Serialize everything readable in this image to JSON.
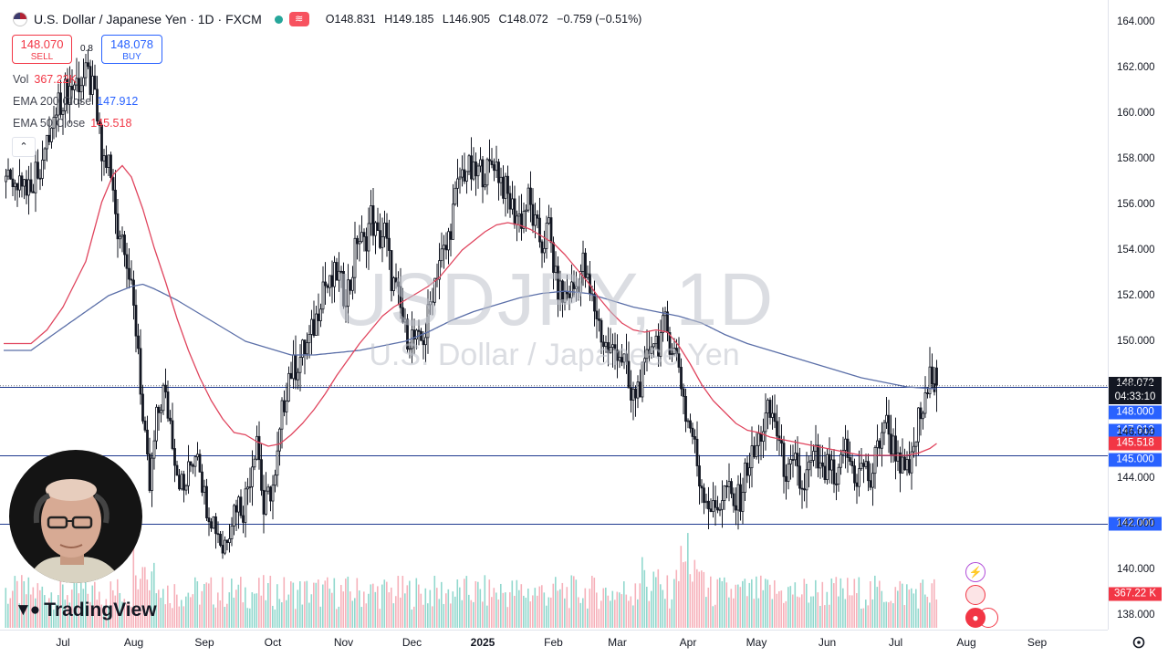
{
  "header": {
    "title": "U.S. Dollar / Japanese Yen · 1D · FXCM",
    "ohlc": {
      "o_label": "O",
      "o": "148.831",
      "h_label": "H",
      "h": "149.185",
      "l_label": "L",
      "l": "146.905",
      "c_label": "C",
      "c": "148.072",
      "change": "−0.759 (−0.51%)"
    }
  },
  "trade": {
    "sell_price": "148.070",
    "sell_label": "SELL",
    "spread": "0.8",
    "buy_price": "148.078",
    "buy_label": "BUY"
  },
  "indicators": [
    {
      "label": "Vol",
      "value": "367.22K",
      "color": "#f23645"
    },
    {
      "label": "EMA 200 Close",
      "value": "147.912",
      "color": "#2962ff"
    },
    {
      "label": "EMA 50 Close",
      "value": "145.518",
      "color": "#f23645"
    }
  ],
  "watermark": {
    "symbol": "USDJPY, 1D",
    "name": "U.S. Dollar / Japanese Yen"
  },
  "logo_text": "TradingView",
  "price_tags": {
    "last_price": "148.072",
    "countdown": "04:33:10",
    "level_148": "148.000",
    "ema200": "147.912",
    "ema50": "145.518",
    "level_145": "145.000",
    "level_142": "142.000",
    "volume": "367.22 K"
  },
  "colors": {
    "up": "#131722",
    "down": "#131722",
    "ema200": "#5b6fa8",
    "ema50": "#e0455e",
    "hline": "#1f3a8f",
    "tag_blue": "#2962ff",
    "tag_red": "#f23645",
    "tag_dark": "#131722",
    "vol_up": "#7fd1c5",
    "vol_down": "#f5a3ae"
  },
  "chart_data": {
    "type": "candlestick",
    "title": "U.S. Dollar / Japanese Yen · 1D · FXCM",
    "ylim": [
      137.2,
      164.8
    ],
    "yticks": [
      138,
      140,
      142,
      144,
      146,
      148,
      150,
      152,
      154,
      156,
      158,
      160,
      162,
      164
    ],
    "ytick_labels": [
      "138.000",
      "140.000",
      "142.000",
      "144.000",
      "146.000",
      "148.000",
      "150.000",
      "152.000",
      "154.000",
      "156.000",
      "158.000",
      "160.000",
      "162.000",
      "164.000"
    ],
    "xticks": [
      {
        "label": "Jul",
        "day": 0
      },
      {
        "label": "Aug",
        "day": 31
      },
      {
        "label": "Sep",
        "day": 62
      },
      {
        "label": "Oct",
        "day": 92
      },
      {
        "label": "Nov",
        "day": 123
      },
      {
        "label": "Dec",
        "day": 153
      },
      {
        "label": "2025",
        "day": 184,
        "bold": true
      },
      {
        "label": "Feb",
        "day": 215
      },
      {
        "label": "Mar",
        "day": 243
      },
      {
        "label": "Apr",
        "day": 274
      },
      {
        "label": "May",
        "day": 304
      },
      {
        "label": "Jun",
        "day": 335
      },
      {
        "label": "Jul",
        "day": 365
      },
      {
        "label": "Aug",
        "day": 396
      },
      {
        "label": "Sep",
        "day": 427
      }
    ],
    "horizontal_levels": [
      148.0,
      145.0,
      142.0
    ],
    "close_path": [
      [
        -14,
        157.0
      ],
      [
        -8,
        158.2
      ],
      [
        -3,
        160.0
      ],
      [
        0,
        160.8
      ],
      [
        5,
        161.3
      ],
      [
        11,
        161.6
      ],
      [
        14,
        160.6
      ],
      [
        17,
        158.0
      ],
      [
        20,
        157.8
      ],
      [
        24,
        155.0
      ],
      [
        27,
        154.5
      ],
      [
        30,
        152.0
      ],
      [
        33,
        149.8
      ],
      [
        35,
        146.4
      ],
      [
        38,
        143.5
      ],
      [
        41,
        146.5
      ],
      [
        44,
        147.8
      ],
      [
        47,
        146.5
      ],
      [
        50,
        144.4
      ],
      [
        53,
        143.4
      ],
      [
        56,
        144.6
      ],
      [
        59,
        145.5
      ],
      [
        62,
        143.2
      ],
      [
        65,
        142.4
      ],
      [
        68,
        141.7
      ],
      [
        70,
        140.9
      ],
      [
        73,
        142.0
      ],
      [
        76,
        143.0
      ],
      [
        79,
        142.7
      ],
      [
        82,
        144.2
      ],
      [
        85,
        146.0
      ],
      [
        88,
        142.5
      ],
      [
        91,
        143.5
      ],
      [
        93,
        143.8
      ],
      [
        96,
        146.8
      ],
      [
        99,
        148.6
      ],
      [
        102,
        148.9
      ],
      [
        105,
        149.5
      ],
      [
        108,
        150.0
      ],
      [
        111,
        151.0
      ],
      [
        114,
        152.6
      ],
      [
        117,
        152.3
      ],
      [
        120,
        153.0
      ],
      [
        123,
        152.1
      ],
      [
        126,
        152.5
      ],
      [
        129,
        154.6
      ],
      [
        132,
        154.2
      ],
      [
        135,
        155.5
      ],
      [
        138,
        154.4
      ],
      [
        141,
        154.8
      ],
      [
        144,
        152.8
      ],
      [
        147,
        151.8
      ],
      [
        150,
        150.4
      ],
      [
        153,
        150.2
      ],
      [
        156,
        149.8
      ],
      [
        159,
        150.4
      ],
      [
        162,
        152.3
      ],
      [
        165,
        153.6
      ],
      [
        168,
        154.0
      ],
      [
        171,
        155.7
      ],
      [
        174,
        157.2
      ],
      [
        177,
        157.6
      ],
      [
        180,
        157.2
      ],
      [
        183,
        157.5
      ],
      [
        186,
        157.4
      ],
      [
        189,
        158.0
      ],
      [
        192,
        157.1
      ],
      [
        195,
        156.3
      ],
      [
        198,
        155.6
      ],
      [
        201,
        155.4
      ],
      [
        204,
        156.2
      ],
      [
        207,
        155.0
      ],
      [
        210,
        154.2
      ],
      [
        213,
        155.0
      ],
      [
        216,
        152.6
      ],
      [
        219,
        151.9
      ],
      [
        222,
        152.2
      ],
      [
        225,
        152.4
      ],
      [
        228,
        153.4
      ],
      [
        231,
        152.0
      ],
      [
        234,
        151.2
      ],
      [
        237,
        149.9
      ],
      [
        240,
        149.5
      ],
      [
        243,
        149.7
      ],
      [
        246,
        149.1
      ],
      [
        249,
        147.3
      ],
      [
        252,
        148.0
      ],
      [
        255,
        148.6
      ],
      [
        258,
        150.2
      ],
      [
        261,
        150.0
      ],
      [
        264,
        150.7
      ],
      [
        267,
        149.8
      ],
      [
        270,
        149.0
      ],
      [
        273,
        146.8
      ],
      [
        276,
        145.9
      ],
      [
        279,
        144.0
      ],
      [
        282,
        143.2
      ],
      [
        285,
        142.5
      ],
      [
        288,
        143.0
      ],
      [
        291,
        143.6
      ],
      [
        294,
        142.7
      ],
      [
        297,
        143.2
      ],
      [
        300,
        144.6
      ],
      [
        303,
        145.0
      ],
      [
        306,
        146.0
      ],
      [
        309,
        146.8
      ],
      [
        312,
        146.6
      ],
      [
        315,
        144.9
      ],
      [
        318,
        144.1
      ],
      [
        321,
        144.5
      ],
      [
        324,
        143.4
      ],
      [
        327,
        144.4
      ],
      [
        330,
        144.9
      ],
      [
        333,
        144.0
      ],
      [
        336,
        144.6
      ],
      [
        339,
        143.2
      ],
      [
        342,
        145.5
      ],
      [
        345,
        144.7
      ],
      [
        348,
        144.0
      ],
      [
        351,
        144.6
      ],
      [
        354,
        143.8
      ],
      [
        357,
        145.3
      ],
      [
        360,
        146.6
      ],
      [
        363,
        145.6
      ],
      [
        366,
        145.1
      ],
      [
        369,
        144.0
      ],
      [
        372,
        144.6
      ],
      [
        375,
        146.5
      ],
      [
        378,
        147.2
      ],
      [
        381,
        148.8
      ],
      [
        383,
        148.07
      ]
    ],
    "ema50_path": [
      [
        -14,
        149.9
      ],
      [
        -7,
        150.5
      ],
      [
        0,
        151.5
      ],
      [
        10,
        153.5
      ],
      [
        17,
        156.1
      ],
      [
        22,
        157.3
      ],
      [
        26,
        157.7
      ],
      [
        30,
        157.2
      ],
      [
        35,
        155.8
      ],
      [
        40,
        154.1
      ],
      [
        45,
        152.6
      ],
      [
        50,
        151.0
      ],
      [
        55,
        149.6
      ],
      [
        60,
        148.4
      ],
      [
        65,
        147.4
      ],
      [
        70,
        146.6
      ],
      [
        75,
        146.0
      ],
      [
        80,
        145.9
      ],
      [
        85,
        145.6
      ],
      [
        90,
        145.4
      ],
      [
        95,
        145.5
      ],
      [
        100,
        145.9
      ],
      [
        105,
        146.4
      ],
      [
        110,
        147.0
      ],
      [
        115,
        147.7
      ],
      [
        120,
        148.5
      ],
      [
        125,
        149.2
      ],
      [
        130,
        149.9
      ],
      [
        135,
        150.5
      ],
      [
        140,
        151.1
      ],
      [
        145,
        151.5
      ],
      [
        150,
        151.8
      ],
      [
        155,
        152.1
      ],
      [
        160,
        152.4
      ],
      [
        165,
        152.8
      ],
      [
        170,
        153.4
      ],
      [
        175,
        154.0
      ],
      [
        180,
        154.4
      ],
      [
        185,
        154.8
      ],
      [
        190,
        155.1
      ],
      [
        195,
        155.2
      ],
      [
        200,
        155.1
      ],
      [
        205,
        154.9
      ],
      [
        210,
        154.6
      ],
      [
        215,
        154.3
      ],
      [
        220,
        153.8
      ],
      [
        225,
        153.2
      ],
      [
        230,
        152.6
      ],
      [
        235,
        151.9
      ],
      [
        240,
        151.3
      ],
      [
        245,
        150.8
      ],
      [
        250,
        150.5
      ],
      [
        255,
        150.4
      ],
      [
        260,
        150.5
      ],
      [
        265,
        150.4
      ],
      [
        270,
        149.8
      ],
      [
        275,
        149.0
      ],
      [
        280,
        148.1
      ],
      [
        285,
        147.4
      ],
      [
        290,
        146.9
      ],
      [
        295,
        146.4
      ],
      [
        300,
        146.1
      ],
      [
        305,
        146.0
      ],
      [
        310,
        145.8
      ],
      [
        315,
        145.7
      ],
      [
        320,
        145.6
      ],
      [
        325,
        145.5
      ],
      [
        330,
        145.4
      ],
      [
        335,
        145.3
      ],
      [
        340,
        145.2
      ],
      [
        345,
        145.1
      ],
      [
        350,
        145.0
      ],
      [
        355,
        145.0
      ],
      [
        360,
        145.0
      ],
      [
        365,
        145.0
      ],
      [
        370,
        145.0
      ],
      [
        375,
        145.1
      ],
      [
        380,
        145.3
      ],
      [
        383,
        145.518
      ]
    ],
    "ema200_path": [
      [
        -14,
        149.6
      ],
      [
        -7,
        150.1
      ],
      [
        0,
        150.6
      ],
      [
        10,
        151.3
      ],
      [
        20,
        152.0
      ],
      [
        30,
        152.4
      ],
      [
        35,
        152.5
      ],
      [
        40,
        152.3
      ],
      [
        50,
        151.8
      ],
      [
        60,
        151.2
      ],
      [
        70,
        150.6
      ],
      [
        80,
        150.0
      ],
      [
        90,
        149.7
      ],
      [
        100,
        149.4
      ],
      [
        110,
        149.4
      ],
      [
        120,
        149.5
      ],
      [
        130,
        149.6
      ],
      [
        140,
        149.8
      ],
      [
        150,
        150.0
      ],
      [
        160,
        150.4
      ],
      [
        170,
        150.9
      ],
      [
        180,
        151.3
      ],
      [
        190,
        151.6
      ],
      [
        200,
        151.9
      ],
      [
        210,
        152.1
      ],
      [
        220,
        152.2
      ],
      [
        230,
        152.1
      ],
      [
        240,
        151.8
      ],
      [
        250,
        151.5
      ],
      [
        260,
        151.3
      ],
      [
        270,
        151.1
      ],
      [
        280,
        150.8
      ],
      [
        290,
        150.3
      ],
      [
        300,
        149.9
      ],
      [
        310,
        149.6
      ],
      [
        320,
        149.3
      ],
      [
        330,
        149.0
      ],
      [
        340,
        148.7
      ],
      [
        350,
        148.4
      ],
      [
        360,
        148.2
      ],
      [
        370,
        148.0
      ],
      [
        383,
        147.912
      ]
    ]
  }
}
